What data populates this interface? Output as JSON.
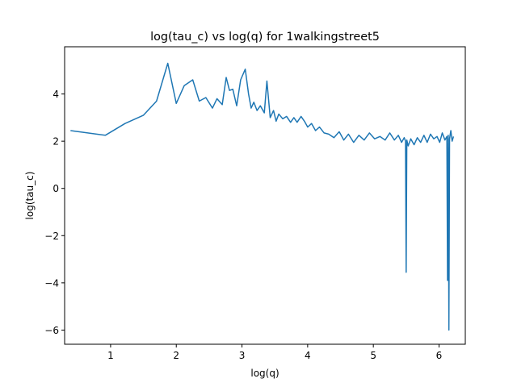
{
  "chart_data": {
    "type": "line",
    "title": "log(tau_c) vs log(q) for 1walkingstreet5",
    "xlabel": "log(q)",
    "ylabel": "log(tau_c)",
    "xlim": [
      0.3,
      6.4
    ],
    "ylim": [
      -6.6,
      6.0
    ],
    "xticks": [
      1,
      2,
      3,
      4,
      5,
      6
    ],
    "yticks": [
      -6,
      -4,
      -2,
      0,
      2,
      4
    ],
    "xtick_labels": [
      "1",
      "2",
      "3",
      "4",
      "5",
      "6"
    ],
    "ytick_labels": [
      "−6",
      "−4",
      "−2",
      "0",
      "2",
      "4"
    ],
    "grid": false,
    "line_color": "#1f77b4",
    "series": [
      {
        "x": [
          0.39,
          0.92,
          1.22,
          1.5,
          1.7,
          1.87,
          2.0,
          2.12,
          2.25,
          2.35,
          2.45,
          2.55,
          2.62,
          2.7,
          2.76,
          2.81,
          2.86,
          2.92,
          2.98,
          3.05,
          3.1,
          3.14,
          3.18,
          3.23,
          3.28,
          3.34,
          3.38,
          3.43,
          3.48,
          3.52,
          3.56,
          3.62,
          3.68,
          3.74,
          3.79,
          3.84,
          3.9,
          3.95,
          4.0,
          4.06,
          4.12,
          4.18,
          4.25,
          4.32,
          4.4,
          4.48,
          4.55,
          4.62,
          4.7,
          4.78,
          4.86,
          4.94,
          5.02,
          5.1,
          5.18,
          5.25,
          5.32,
          5.38,
          5.43,
          5.47,
          5.49,
          5.5,
          5.51,
          5.53,
          5.57,
          5.62,
          5.67,
          5.72,
          5.77,
          5.82,
          5.87,
          5.92,
          5.97,
          6.01,
          6.05,
          6.09,
          6.12,
          6.13,
          6.14,
          6.15,
          6.16,
          6.18,
          6.2,
          6.22
        ],
        "y": [
          2.45,
          2.25,
          2.75,
          3.1,
          3.7,
          5.3,
          3.6,
          4.35,
          4.6,
          3.7,
          3.85,
          3.4,
          3.8,
          3.55,
          4.7,
          4.15,
          4.2,
          3.5,
          4.6,
          5.05,
          4.0,
          3.4,
          3.65,
          3.3,
          3.5,
          3.2,
          4.55,
          3.0,
          3.3,
          2.85,
          3.15,
          2.95,
          3.05,
          2.8,
          3.0,
          2.8,
          3.05,
          2.85,
          2.6,
          2.75,
          2.45,
          2.6,
          2.35,
          2.3,
          2.15,
          2.4,
          2.05,
          2.3,
          1.95,
          2.25,
          2.05,
          2.35,
          2.1,
          2.2,
          2.05,
          2.35,
          2.05,
          2.25,
          1.95,
          2.15,
          2.0,
          -3.55,
          2.05,
          1.8,
          2.1,
          1.85,
          2.15,
          1.95,
          2.25,
          1.95,
          2.3,
          2.1,
          2.2,
          1.95,
          2.35,
          2.05,
          2.2,
          -3.9,
          2.25,
          -6.0,
          2.1,
          2.45,
          2.0,
          2.2
        ]
      }
    ]
  }
}
